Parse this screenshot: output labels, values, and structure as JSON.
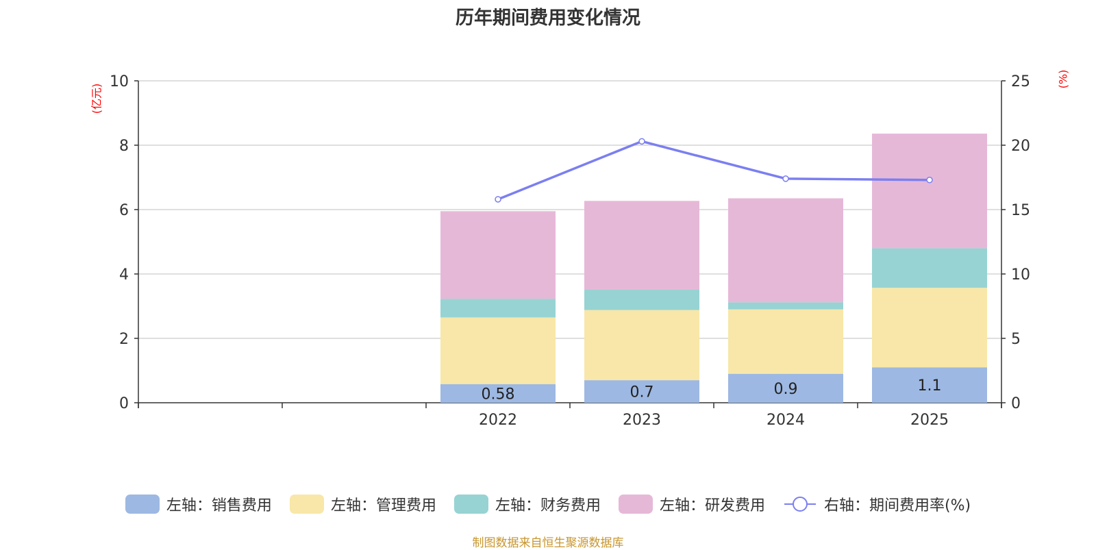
{
  "chart_data": {
    "type": "bar",
    "title": "历年期间费用变化情况",
    "categories": [
      "",
      "",
      "2022",
      "2023",
      "2024",
      "2025"
    ],
    "left_axis": {
      "unit": "(亿元)",
      "ylim": [
        0,
        10
      ],
      "ticks": [
        0,
        2,
        4,
        6,
        8,
        10
      ]
    },
    "right_axis": {
      "unit": "(%)",
      "ylim": [
        0,
        25
      ],
      "ticks": [
        0,
        5,
        10,
        15,
        20,
        25
      ]
    },
    "series": [
      {
        "name": "左轴：销售费用",
        "type": "bar",
        "stack": "left",
        "color": "#9db8e2",
        "values": [
          null,
          null,
          0.58,
          0.7,
          0.9,
          1.1
        ],
        "show_labels": true
      },
      {
        "name": "左轴：管理费用",
        "type": "bar",
        "stack": "left",
        "color": "#f8e7a8",
        "values": [
          null,
          null,
          2.07,
          2.18,
          2.0,
          2.47
        ]
      },
      {
        "name": "左轴：财务费用",
        "type": "bar",
        "stack": "left",
        "color": "#97d3d3",
        "values": [
          null,
          null,
          0.58,
          0.63,
          0.22,
          1.23
        ]
      },
      {
        "name": "左轴：研发费用",
        "type": "bar",
        "stack": "left",
        "color": "#e6b8d8",
        "values": [
          null,
          null,
          2.72,
          2.76,
          3.23,
          3.56
        ]
      },
      {
        "name": "右轴：期间费用率(%)",
        "type": "line",
        "axis": "right",
        "color": "#7b7ff0",
        "values": [
          null,
          null,
          15.8,
          20.3,
          17.4,
          17.3
        ]
      }
    ],
    "grid": true,
    "legend_position": "bottom"
  },
  "source": {
    "text": "制图数据来自恒生聚源数据库",
    "color": "#c8962e"
  },
  "colors": {
    "unit": "#ff0000",
    "axis": "#333333",
    "grid": "#cccccc"
  }
}
